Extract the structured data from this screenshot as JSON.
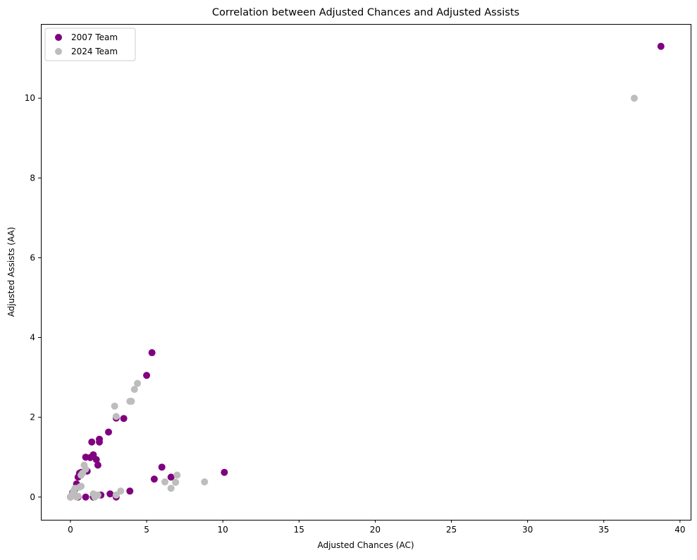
{
  "chart_data": {
    "type": "scatter",
    "title": "Correlation between Adjusted Chances and Adjusted Assists",
    "xlabel": "Adjusted Chances (AC)",
    "ylabel": "Adjusted Assists (AA)",
    "xlim": [
      -1.94,
      40.7
    ],
    "ylim": [
      -0.57,
      11.86
    ],
    "xticks": [
      0,
      5,
      10,
      15,
      20,
      25,
      30,
      35,
      40
    ],
    "yticks": [
      0,
      2,
      4,
      6,
      8,
      10
    ],
    "grid": false,
    "legend_position": "top-left",
    "series": [
      {
        "name": "2007 Team",
        "color": "#800080",
        "points": [
          [
            38.75,
            11.3
          ],
          [
            5.35,
            3.62
          ],
          [
            5.0,
            3.05
          ],
          [
            2.5,
            1.63
          ],
          [
            3.5,
            1.97
          ],
          [
            3.0,
            1.98
          ],
          [
            1.9,
            1.45
          ],
          [
            1.9,
            1.38
          ],
          [
            1.4,
            1.38
          ],
          [
            1.5,
            1.06
          ],
          [
            1.3,
            0.99
          ],
          [
            1.0,
            1.0
          ],
          [
            1.7,
            0.94
          ],
          [
            1.8,
            0.8
          ],
          [
            1.1,
            0.65
          ],
          [
            0.6,
            0.6
          ],
          [
            0.7,
            0.62
          ],
          [
            0.5,
            0.5
          ],
          [
            0.4,
            0.33
          ],
          [
            0.3,
            0.2
          ],
          [
            0.2,
            0.1
          ],
          [
            0.1,
            0.05
          ],
          [
            0.0,
            0.0
          ],
          [
            0.15,
            0.12
          ],
          [
            1.0,
            0.0
          ],
          [
            1.5,
            0.0
          ],
          [
            2.6,
            0.08
          ],
          [
            2.0,
            0.05
          ],
          [
            3.0,
            0.0
          ],
          [
            3.9,
            0.15
          ],
          [
            6.0,
            0.75
          ],
          [
            5.5,
            0.45
          ],
          [
            6.6,
            0.5
          ],
          [
            10.1,
            0.62
          ],
          [
            0.5,
            0.0
          ]
        ]
      },
      {
        "name": "2024 Team",
        "color": "#bdbdbd",
        "points": [
          [
            37.0,
            10.0
          ],
          [
            4.4,
            2.85
          ],
          [
            4.2,
            2.7
          ],
          [
            4.0,
            2.4
          ],
          [
            3.9,
            2.4
          ],
          [
            3.0,
            2.02
          ],
          [
            2.9,
            2.28
          ],
          [
            0.9,
            0.8
          ],
          [
            1.0,
            0.7
          ],
          [
            0.8,
            0.6
          ],
          [
            0.7,
            0.55
          ],
          [
            0.6,
            0.25
          ],
          [
            0.7,
            0.27
          ],
          [
            0.3,
            0.22
          ],
          [
            0.2,
            0.15
          ],
          [
            0.1,
            0.05
          ],
          [
            0.0,
            0.0
          ],
          [
            0.4,
            0.0
          ],
          [
            0.5,
            0.02
          ],
          [
            1.5,
            0.08
          ],
          [
            1.8,
            0.05
          ],
          [
            3.0,
            0.05
          ],
          [
            3.3,
            0.15
          ],
          [
            6.2,
            0.38
          ],
          [
            6.6,
            0.22
          ],
          [
            6.9,
            0.37
          ],
          [
            7.0,
            0.55
          ],
          [
            8.8,
            0.38
          ],
          [
            1.6,
            0.0
          ],
          [
            0.25,
            0.1
          ]
        ]
      }
    ]
  }
}
